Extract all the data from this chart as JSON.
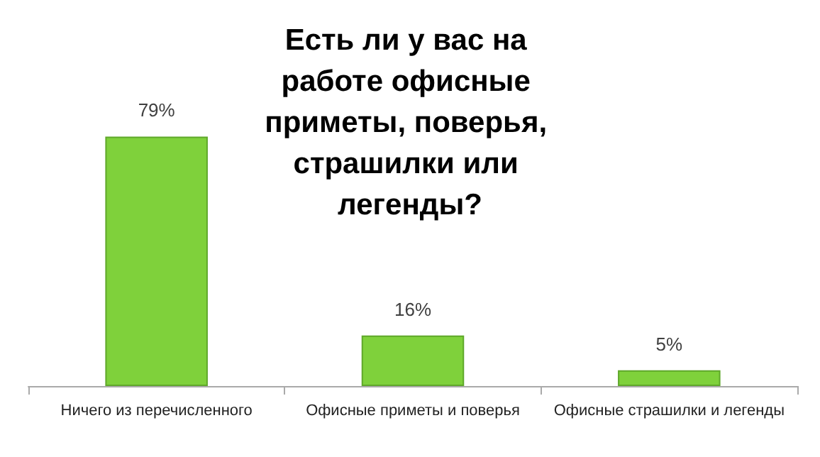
{
  "chart_data": {
    "type": "bar",
    "title": "Есть ли у вас на работе офисные приметы, поверья, страшилки или легенды?",
    "categories": [
      "Ничего из перечисленного",
      "Офисные приметы и поверья",
      "Офисные страшилки и легенды"
    ],
    "values": [
      79,
      16,
      5
    ],
    "value_labels": [
      "79%",
      "16%",
      "5%"
    ],
    "color": "#7fd13b",
    "grid": false
  }
}
